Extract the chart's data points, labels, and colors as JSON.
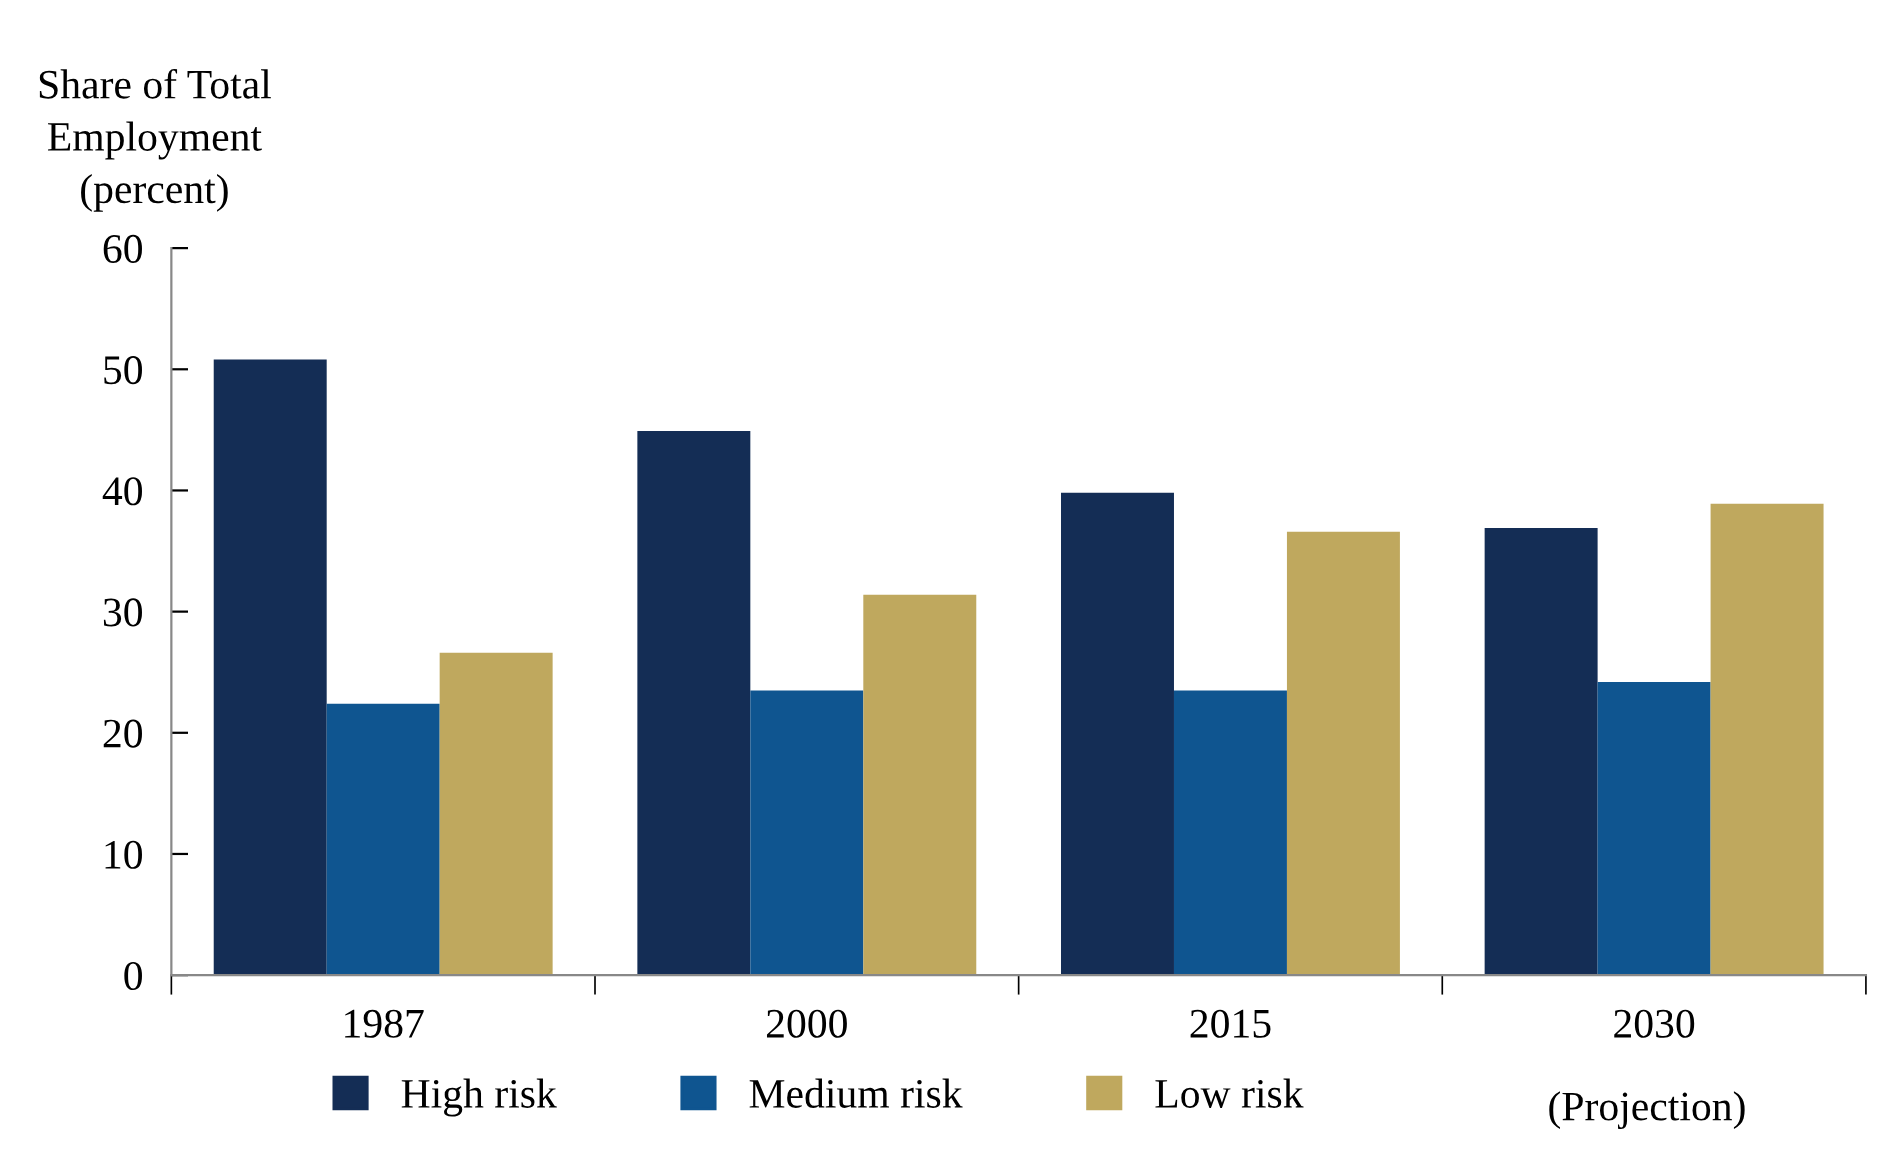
{
  "chart_data": {
    "type": "bar",
    "ylabel": "Share of Total\nEmployment\n(percent)",
    "categories": [
      "1987",
      "2000",
      "2015",
      "2030"
    ],
    "series": [
      {
        "name": "High risk",
        "color": "#142d55",
        "values": [
          50.8,
          44.9,
          39.8,
          36.9
        ]
      },
      {
        "name": "Medium risk",
        "color": "#0f5590",
        "values": [
          22.4,
          23.5,
          23.5,
          24.2
        ]
      },
      {
        "name": "Low risk",
        "color": "#bfa85e",
        "values": [
          26.6,
          31.4,
          36.6,
          38.9
        ]
      }
    ],
    "ylim": [
      0,
      60
    ],
    "yticks": [
      0,
      10,
      20,
      30,
      40,
      50,
      60
    ],
    "grid": false,
    "legend": "bottom",
    "annotations": [
      "(Projection)"
    ]
  }
}
